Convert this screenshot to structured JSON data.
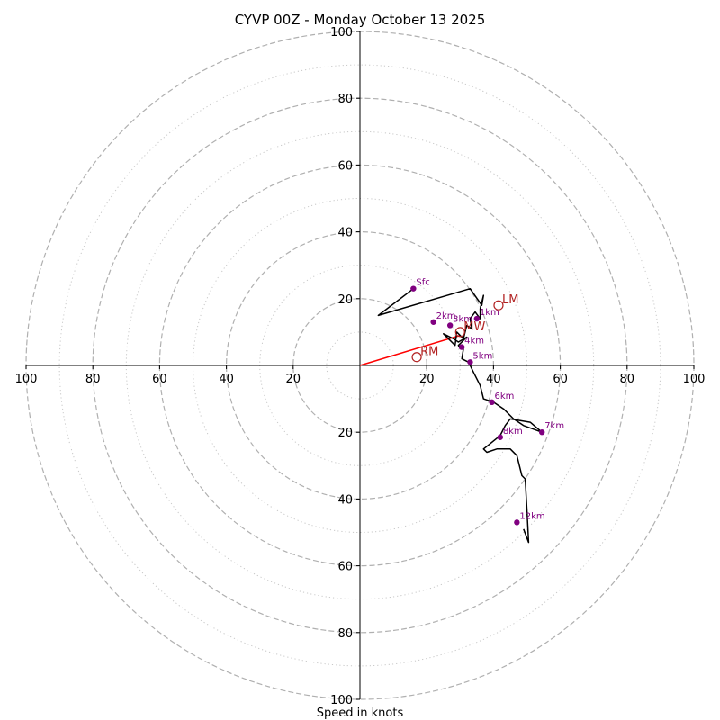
{
  "chart_data": {
    "type": "hodograph",
    "title": "CYVP 00Z - Monday October 13 2025",
    "xlabel": "Speed in knots",
    "range": [
      -100,
      100
    ],
    "ring_major": [
      20,
      40,
      60,
      80,
      100
    ],
    "ring_minor": [
      10,
      30,
      50,
      70,
      90
    ],
    "ticks": {
      "x_left": [
        "100",
        "80",
        "60",
        "40",
        "20"
      ],
      "x_right": [
        "20",
        "40",
        "60",
        "80",
        "100"
      ],
      "y_top": [
        "20",
        "40",
        "60",
        "80",
        "100"
      ],
      "y_bottom": [
        "20",
        "40",
        "60",
        "80",
        "100"
      ]
    },
    "hodograph_trace": [
      [
        16,
        23
      ],
      [
        5.5,
        15
      ],
      [
        33,
        23
      ],
      [
        36.5,
        18
      ],
      [
        37,
        21
      ],
      [
        36,
        17
      ],
      [
        36,
        14
      ],
      [
        34.5,
        16
      ],
      [
        33,
        14
      ],
      [
        33.5,
        11
      ],
      [
        32,
        12
      ],
      [
        31,
        8
      ],
      [
        29,
        10
      ],
      [
        28.5,
        6
      ],
      [
        25,
        9.5
      ],
      [
        28,
        8
      ],
      [
        29.5,
        7
      ],
      [
        32,
        8.5
      ],
      [
        29.5,
        6
      ],
      [
        30,
        5
      ],
      [
        31,
        5
      ],
      [
        30.5,
        2
      ],
      [
        32.5,
        1
      ],
      [
        34,
        -2
      ],
      [
        36,
        -6
      ],
      [
        37,
        -10
      ],
      [
        40,
        -11
      ],
      [
        43,
        -13
      ],
      [
        46,
        -16
      ],
      [
        49,
        -18
      ],
      [
        54.5,
        -20
      ],
      [
        51,
        -17
      ],
      [
        45,
        -16
      ],
      [
        43.5,
        -18
      ],
      [
        42,
        -21
      ],
      [
        37,
        -25
      ],
      [
        38,
        -26
      ],
      [
        41,
        -25
      ],
      [
        45,
        -25
      ],
      [
        47,
        -27
      ],
      [
        48.5,
        -33
      ],
      [
        49.5,
        -34
      ],
      [
        50,
        -43
      ],
      [
        50.5,
        -53
      ],
      [
        49,
        -49
      ]
    ],
    "height_markers": [
      {
        "label": "Sfc",
        "u": 16,
        "v": 23
      },
      {
        "label": "1km",
        "u": 35,
        "v": 14
      },
      {
        "label": "2km",
        "u": 22,
        "v": 13
      },
      {
        "label": "3km",
        "u": 27,
        "v": 12
      },
      {
        "label": "4km",
        "u": 30.5,
        "v": 5.5
      },
      {
        "label": "5km",
        "u": 33,
        "v": 1
      },
      {
        "label": "6km",
        "u": 39.5,
        "v": -11
      },
      {
        "label": "7km",
        "u": 54.5,
        "v": -20
      },
      {
        "label": "8km",
        "u": 42,
        "v": -21.5
      },
      {
        "label": "12km",
        "u": 47,
        "v": -47
      }
    ],
    "motions": [
      {
        "label": "LM",
        "u": 41.5,
        "v": 18
      },
      {
        "label": "MW",
        "u": 30,
        "v": 10
      },
      {
        "label": "RM",
        "u": 17,
        "v": 2.5
      }
    ],
    "shear_vector": {
      "u": 30,
      "v": 9
    },
    "colors": {
      "trace": "#000000",
      "marker": "#800080",
      "marker_label": "#800080",
      "motion": "#b22222",
      "shear": "#ff0000",
      "ring_major": "#b0b0b0",
      "ring_minor": "#c8c8c8"
    }
  }
}
